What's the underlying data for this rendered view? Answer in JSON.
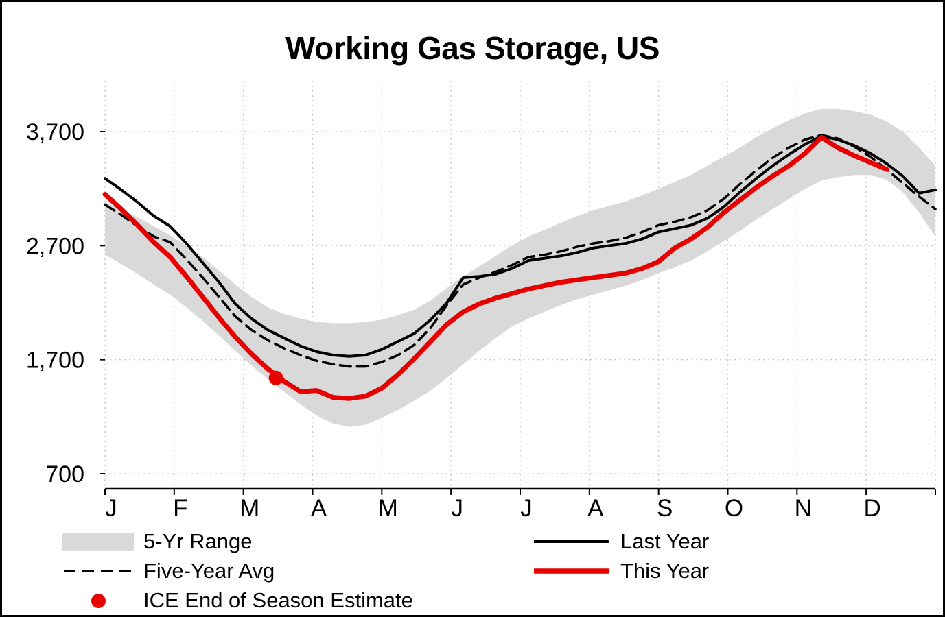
{
  "colors": {
    "red": "#e60000",
    "gray_band": "#d9d9d9",
    "black": "#000000"
  },
  "chart_data": {
    "type": "line",
    "title": "Working Gas Storage, US",
    "grid": true,
    "legend_position": "bottom",
    "points_per_year": 52,
    "x_axis": {
      "unit": "month",
      "tick_labels": [
        "J",
        "F",
        "M",
        "A",
        "M",
        "J",
        "J",
        "A",
        "S",
        "O",
        "N",
        "D"
      ]
    },
    "y_axis": {
      "ticks": [
        {
          "label": "3,700",
          "value": 3700
        },
        {
          "label": "2,700",
          "value": 2700
        },
        {
          "label": "1,700",
          "value": 1700
        },
        {
          "label": "700",
          "value": 700
        }
      ],
      "range": [
        550,
        4150
      ]
    },
    "band": {
      "name": "5-Yr Range",
      "color": "#d9d9d9",
      "upper": [
        3080,
        3020,
        2950,
        2870,
        2790,
        2700,
        2600,
        2480,
        2360,
        2250,
        2160,
        2100,
        2060,
        2030,
        2020,
        2020,
        2030,
        2050,
        2090,
        2140,
        2220,
        2330,
        2430,
        2520,
        2610,
        2700,
        2780,
        2840,
        2900,
        2960,
        3010,
        3050,
        3090,
        3140,
        3200,
        3260,
        3320,
        3400,
        3480,
        3560,
        3650,
        3730,
        3800,
        3860,
        3900,
        3900,
        3880,
        3850,
        3790,
        3700,
        3560,
        3400
      ],
      "lower": [
        2620,
        2540,
        2450,
        2360,
        2270,
        2160,
        2040,
        1910,
        1780,
        1650,
        1530,
        1420,
        1310,
        1210,
        1140,
        1110,
        1130,
        1190,
        1260,
        1340,
        1430,
        1540,
        1660,
        1780,
        1890,
        1990,
        2060,
        2120,
        2180,
        2230,
        2270,
        2310,
        2350,
        2400,
        2460,
        2510,
        2570,
        2650,
        2740,
        2830,
        2930,
        3020,
        3110,
        3200,
        3270,
        3300,
        3320,
        3320,
        3280,
        3170,
        2990,
        2780
      ]
    },
    "series": [
      {
        "name": "Five-Year Avg",
        "data_name": "five-year-avg-line",
        "style": "dashed",
        "color": "#000000",
        "width": 3.5,
        "values": [
          3060,
          2970,
          2870,
          2780,
          2730,
          2580,
          2420,
          2250,
          2080,
          1960,
          1870,
          1800,
          1740,
          1690,
          1660,
          1640,
          1640,
          1680,
          1740,
          1830,
          1980,
          2180,
          2360,
          2420,
          2470,
          2530,
          2600,
          2620,
          2650,
          2690,
          2720,
          2740,
          2770,
          2820,
          2880,
          2910,
          2950,
          3010,
          3110,
          3240,
          3360,
          3470,
          3560,
          3630,
          3670,
          3640,
          3570,
          3480,
          3370,
          3250,
          3130,
          3020
        ]
      },
      {
        "name": "Last Year",
        "data_name": "last-year-line",
        "style": "solid",
        "color": "#000000",
        "width": 4,
        "values": [
          3290,
          3190,
          3080,
          2960,
          2870,
          2720,
          2550,
          2380,
          2190,
          2060,
          1960,
          1890,
          1820,
          1770,
          1740,
          1730,
          1740,
          1790,
          1860,
          1930,
          2050,
          2200,
          2420,
          2430,
          2450,
          2500,
          2570,
          2590,
          2610,
          2640,
          2680,
          2700,
          2720,
          2760,
          2820,
          2850,
          2880,
          2940,
          3040,
          3170,
          3290,
          3400,
          3500,
          3590,
          3660,
          3630,
          3580,
          3510,
          3420,
          3310,
          3160,
          3190
        ]
      },
      {
        "name": "This Year",
        "data_name": "this-year-line",
        "style": "solid",
        "color": "#e60000",
        "width": 7,
        "values": [
          3150,
          3020,
          2880,
          2730,
          2600,
          2430,
          2250,
          2070,
          1900,
          1750,
          1620,
          1510,
          1420,
          1430,
          1370,
          1360,
          1380,
          1450,
          1570,
          1710,
          1860,
          2010,
          2120,
          2190,
          2240,
          2280,
          2320,
          2350,
          2380,
          2400,
          2420,
          2440,
          2460,
          2500,
          2560,
          2680,
          2760,
          2860,
          2990,
          3100,
          3210,
          3310,
          3400,
          3510,
          3650,
          3560,
          3490,
          3430,
          3370,
          null,
          null,
          null
        ]
      }
    ],
    "point_marker": {
      "name": "ICE End of Season Estimate",
      "color": "#e60000",
      "week": 10.5,
      "value": 1540
    }
  },
  "legend": {
    "left_column": [
      {
        "label": "5-Yr Range",
        "swatch": "band"
      },
      {
        "label": "Five-Year Avg",
        "swatch": "dashed-line"
      },
      {
        "label": "ICE End of Season Estimate",
        "swatch": "dot"
      }
    ],
    "right_column": [
      {
        "label": "Last Year",
        "swatch": "solid-black-line"
      },
      {
        "label": "This Year",
        "swatch": "thick-red-line"
      }
    ]
  }
}
